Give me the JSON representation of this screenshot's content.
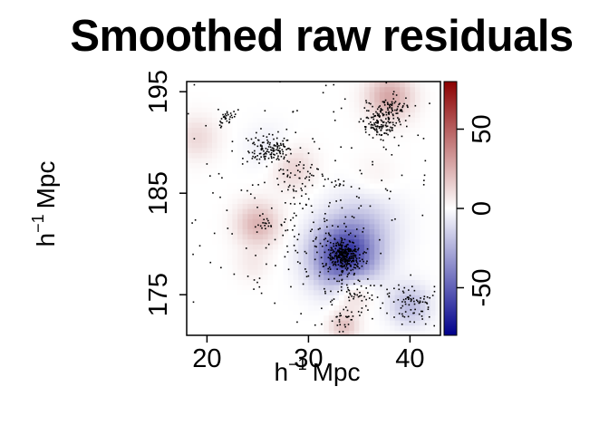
{
  "chart_data": {
    "type": "heatmap",
    "title": "Smoothed raw residuals",
    "xlabel": {
      "base": "h",
      "exponent": "−1",
      "unit": "Mpc"
    },
    "ylabel": {
      "base": "h",
      "exponent": "−1",
      "unit": "Mpc"
    },
    "xlim": [
      18,
      43
    ],
    "ylim": [
      171,
      196
    ],
    "x_ticks": [
      20,
      30,
      40
    ],
    "y_ticks": [
      175,
      185,
      195
    ],
    "colorbar": {
      "range": [
        -80,
        80
      ],
      "ticks": [
        -50,
        0,
        50
      ],
      "low_color": "#00008b",
      "mid_color": "#ffffff",
      "high_color": "#8b0000"
    },
    "residual_blobs": [
      {
        "x": 33.5,
        "y": 178.8,
        "value": -62,
        "sigma": 2.2
      },
      {
        "x": 35.5,
        "y": 182.0,
        "value": -14,
        "sigma": 2.5
      },
      {
        "x": 40.0,
        "y": 174.0,
        "value": -22,
        "sigma": 1.4
      },
      {
        "x": 26.0,
        "y": 189.5,
        "value": -6,
        "sigma": 1.6
      },
      {
        "x": 38.0,
        "y": 194.5,
        "value": 28,
        "sigma": 1.6
      },
      {
        "x": 25.0,
        "y": 182.0,
        "value": 24,
        "sigma": 1.5
      },
      {
        "x": 34.5,
        "y": 175.5,
        "value": 22,
        "sigma": 1.3
      },
      {
        "x": 33.5,
        "y": 172.0,
        "value": 20,
        "sigma": 1.0
      },
      {
        "x": 28.5,
        "y": 187.5,
        "value": 14,
        "sigma": 1.5
      },
      {
        "x": 19.0,
        "y": 190.5,
        "value": 12,
        "sigma": 1.5
      },
      {
        "x": 24.5,
        "y": 178.0,
        "value": 6,
        "sigma": 1.2
      },
      {
        "x": 36.5,
        "y": 186.5,
        "value": 5,
        "sigma": 1.6
      }
    ],
    "point_clusters": [
      {
        "x": 33.5,
        "y": 178.8,
        "sx": 0.8,
        "sy": 0.8,
        "n": 300
      },
      {
        "x": 37.0,
        "y": 192.0,
        "sx": 0.9,
        "sy": 0.8,
        "n": 140
      },
      {
        "x": 38.5,
        "y": 193.5,
        "sx": 0.8,
        "sy": 0.6,
        "n": 60
      },
      {
        "x": 26.0,
        "y": 189.5,
        "sx": 1.0,
        "sy": 0.7,
        "n": 120
      },
      {
        "x": 22.0,
        "y": 192.5,
        "sx": 0.5,
        "sy": 0.4,
        "n": 30
      },
      {
        "x": 40.0,
        "y": 174.0,
        "sx": 1.3,
        "sy": 1.0,
        "n": 80
      },
      {
        "x": 25.5,
        "y": 182.0,
        "sx": 0.4,
        "sy": 0.4,
        "n": 15
      },
      {
        "x": 33.0,
        "y": 186.0,
        "sx": 0.2,
        "sy": 0.3,
        "n": 8
      },
      {
        "x": 28.5,
        "y": 187.0,
        "sx": 1.5,
        "sy": 1.5,
        "n": 50
      },
      {
        "x": 34.5,
        "y": 175.0,
        "sx": 1.2,
        "sy": 1.2,
        "n": 60
      },
      {
        "x": 33.5,
        "y": 172.5,
        "sx": 0.5,
        "sy": 0.8,
        "n": 20
      },
      {
        "x": 30.5,
        "y": 181.0,
        "sx": 2.5,
        "sy": 3.0,
        "n": 90
      },
      {
        "x": 30.5,
        "y": 183.5,
        "sx": 8.0,
        "sy": 7.0,
        "n": 220
      }
    ]
  }
}
